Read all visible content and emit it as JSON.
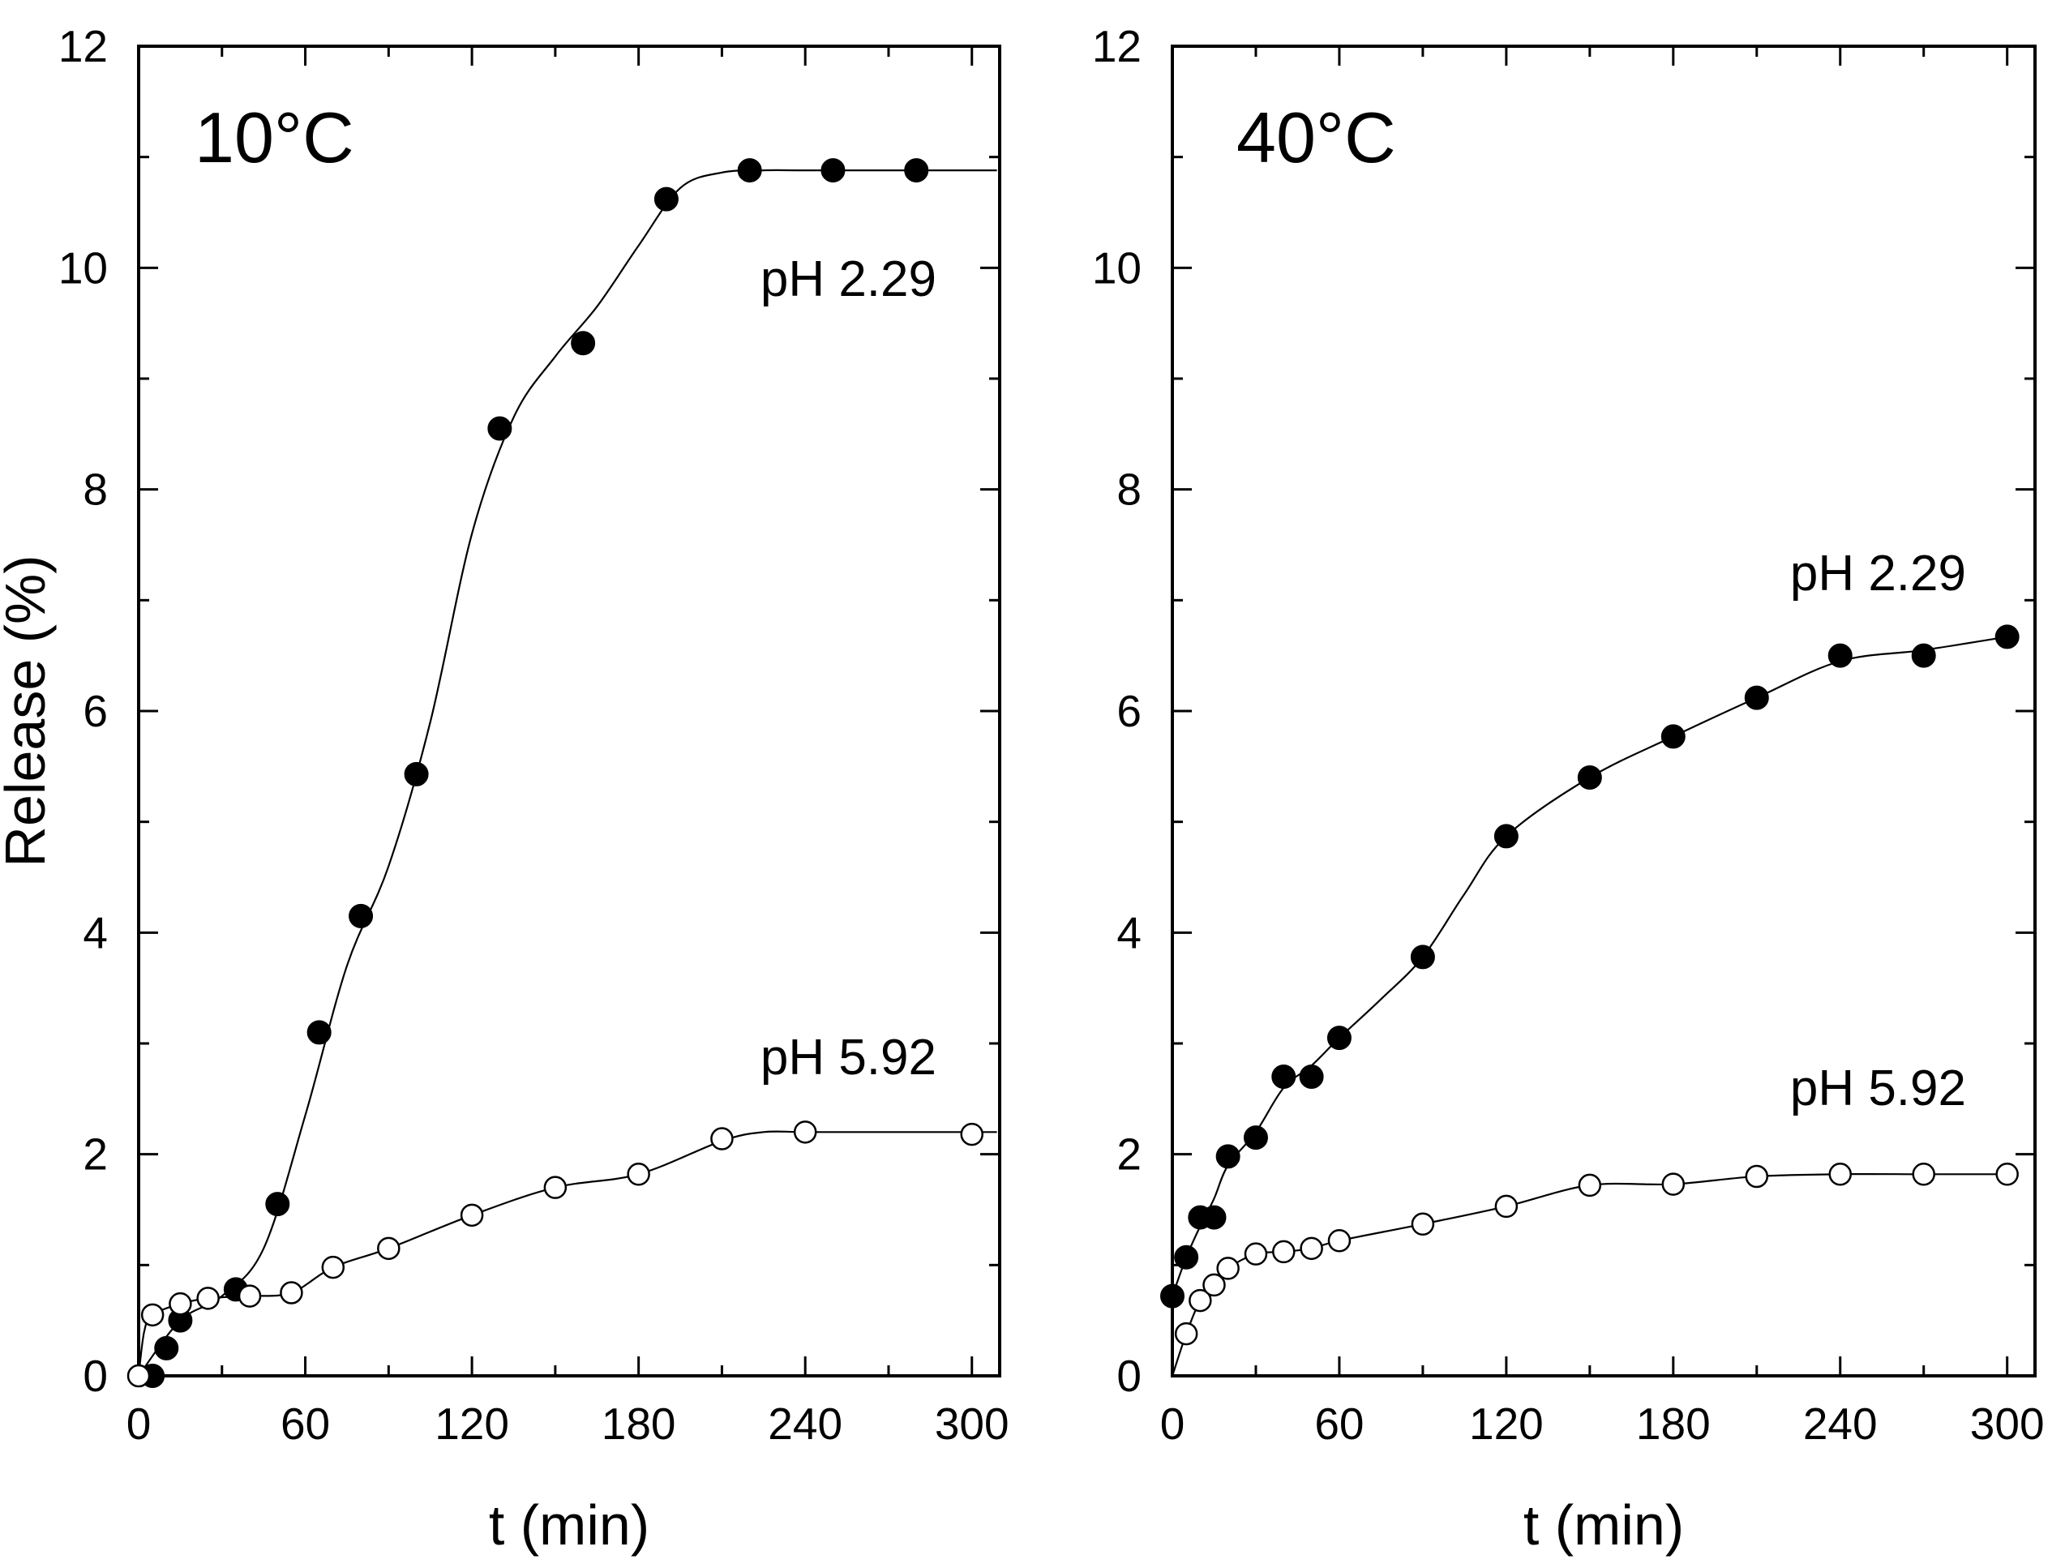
{
  "chart_data": [
    {
      "type": "scatter",
      "title": "10°C",
      "xlabel": "t (min)",
      "ylabel": "Release (%)",
      "xlim": [
        0,
        310
      ],
      "ylim": [
        0,
        12
      ],
      "xticks": [
        0,
        60,
        120,
        180,
        240,
        300
      ],
      "yticks": [
        0,
        2,
        4,
        6,
        8,
        10,
        12
      ],
      "xminor": [
        30,
        90,
        150,
        210,
        270
      ],
      "yminor": [
        1,
        3,
        5,
        7,
        9,
        11
      ],
      "series": [
        {
          "name": "pH 2.29",
          "marker": "filled-circle",
          "x": [
            5,
            10,
            15,
            35,
            50,
            65,
            80,
            100,
            130,
            160,
            190,
            220,
            250,
            280
          ],
          "y": [
            0.0,
            0.25,
            0.5,
            0.78,
            1.55,
            3.1,
            4.15,
            5.43,
            8.55,
            9.32,
            10.62,
            10.88,
            10.88,
            10.88
          ],
          "fit_x": [
            0,
            15,
            30,
            45,
            60,
            75,
            90,
            105,
            120,
            135,
            150,
            165,
            180,
            195,
            210,
            225,
            240,
            270,
            309
          ],
          "fit_y": [
            0.0,
            0.5,
            0.72,
            1.15,
            2.35,
            3.7,
            4.6,
            5.9,
            7.6,
            8.65,
            9.2,
            9.65,
            10.2,
            10.72,
            10.86,
            10.88,
            10.88,
            10.88,
            10.88
          ]
        },
        {
          "name": "pH 5.92",
          "marker": "open-circle",
          "x": [
            0,
            5,
            15,
            25,
            40,
            55,
            70,
            90,
            120,
            150,
            180,
            210,
            240,
            300
          ],
          "y": [
            0.0,
            0.55,
            0.65,
            0.7,
            0.72,
            0.75,
            0.98,
            1.15,
            1.45,
            1.7,
            1.82,
            2.14,
            2.2,
            2.18
          ],
          "fit_x": [
            0,
            2,
            5,
            15,
            25,
            40,
            55,
            70,
            90,
            120,
            150,
            180,
            210,
            225,
            240,
            270,
            309
          ],
          "fit_y": [
            0.0,
            0.4,
            0.55,
            0.65,
            0.7,
            0.72,
            0.75,
            0.98,
            1.15,
            1.45,
            1.7,
            1.82,
            2.12,
            2.2,
            2.2,
            2.2,
            2.2
          ]
        }
      ]
    },
    {
      "type": "scatter",
      "title": "40°C",
      "xlabel": "t (min)",
      "ylabel": "",
      "xlim": [
        0,
        310
      ],
      "ylim": [
        0,
        12
      ],
      "xticks": [
        0,
        60,
        120,
        180,
        240,
        300
      ],
      "yticks": [
        0,
        2,
        4,
        6,
        8,
        10,
        12
      ],
      "xminor": [
        30,
        90,
        150,
        210,
        270
      ],
      "yminor": [
        1,
        3,
        5,
        7,
        9,
        11
      ],
      "series": [
        {
          "name": "pH 2.29",
          "marker": "filled-circle",
          "x": [
            0,
            5,
            10,
            15,
            20,
            30,
            40,
            50,
            60,
            90,
            120,
            150,
            180,
            210,
            240,
            270,
            300
          ],
          "y": [
            0.72,
            1.07,
            1.43,
            1.43,
            1.98,
            2.15,
            2.7,
            2.7,
            3.05,
            3.78,
            4.87,
            5.4,
            5.77,
            6.12,
            6.5,
            6.5,
            6.67
          ],
          "fit_x": [
            0,
            5,
            10,
            15,
            20,
            30,
            40,
            50,
            60,
            75,
            90,
            105,
            120,
            150,
            180,
            210,
            240,
            270,
            300
          ],
          "fit_y": [
            0.72,
            1.07,
            1.35,
            1.6,
            1.9,
            2.2,
            2.6,
            2.8,
            3.05,
            3.4,
            3.78,
            4.35,
            4.87,
            5.4,
            5.77,
            6.12,
            6.45,
            6.55,
            6.67
          ]
        },
        {
          "name": "pH 5.92",
          "marker": "open-circle",
          "x": [
            5,
            10,
            15,
            20,
            30,
            40,
            50,
            60,
            90,
            120,
            150,
            180,
            210,
            240,
            270,
            300
          ],
          "y": [
            0.38,
            0.68,
            0.82,
            0.97,
            1.1,
            1.12,
            1.15,
            1.22,
            1.37,
            1.53,
            1.72,
            1.73,
            1.8,
            1.82,
            1.82,
            1.82
          ],
          "fit_x": [
            0,
            5,
            10,
            15,
            20,
            30,
            40,
            50,
            60,
            90,
            120,
            150,
            180,
            210,
            240,
            270,
            300
          ],
          "fit_y": [
            0.0,
            0.38,
            0.68,
            0.82,
            0.97,
            1.1,
            1.12,
            1.15,
            1.22,
            1.37,
            1.53,
            1.72,
            1.73,
            1.8,
            1.82,
            1.82,
            1.82
          ]
        }
      ]
    }
  ]
}
